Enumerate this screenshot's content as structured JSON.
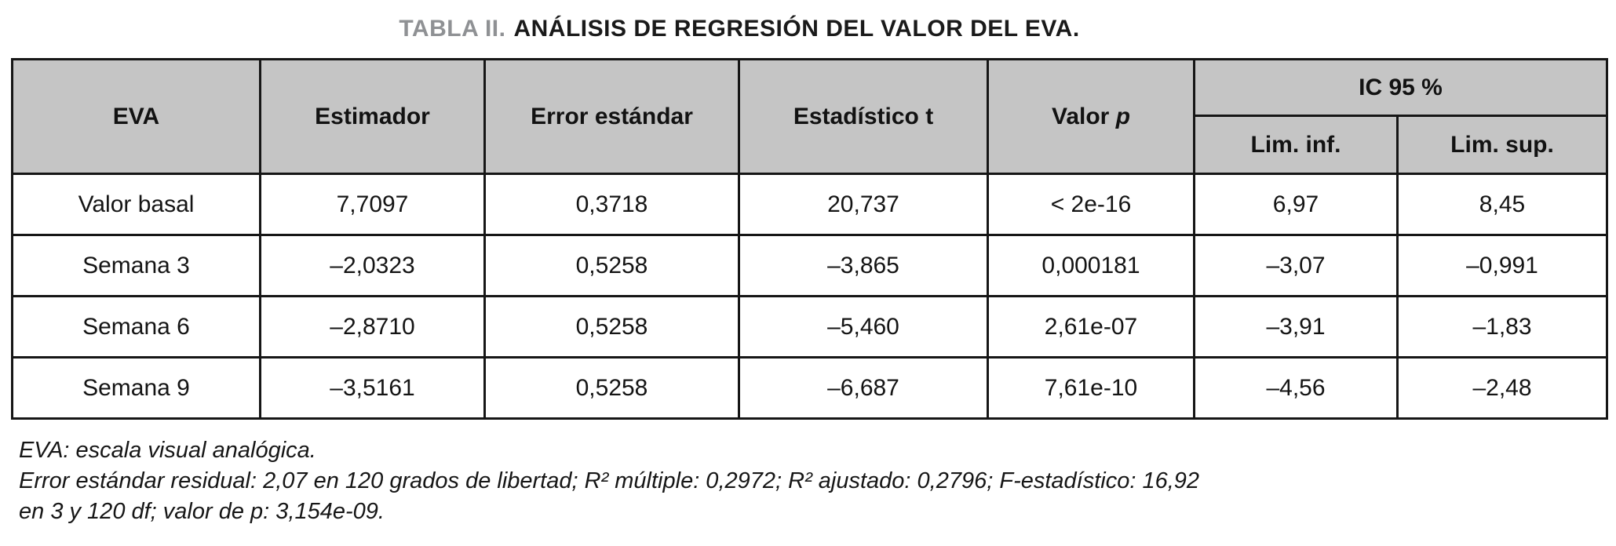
{
  "title": {
    "prefix": "TABLA II.",
    "text": "ANÁLISIS DE REGRESIÓN DEL VALOR DEL EVA."
  },
  "table": {
    "headers": {
      "eva": "EVA",
      "estimador": "Estimador",
      "error_estandar": "Error estándar",
      "estadistico_t": "Estadístico t",
      "valor_p_plain": "Valor",
      "valor_p_italic": "p",
      "ic95": "IC 95 %",
      "lim_inf": "Lim. inf.",
      "lim_sup": "Lim. sup."
    },
    "rows": [
      [
        "Valor basal",
        "7,7097",
        "0,3718",
        "20,737",
        "< 2e-16",
        "6,97",
        "8,45"
      ],
      [
        "Semana 3",
        "–2,0323",
        "0,5258",
        "–3,865",
        "0,000181",
        "–3,07",
        "–0,991"
      ],
      [
        "Semana 6",
        "–2,8710",
        "0,5258",
        "–5,460",
        "2,61e-07",
        "–3,91",
        "–1,83"
      ],
      [
        "Semana 9",
        "–3,5161",
        "0,5258",
        "–6,687",
        "7,61e-10",
        "–4,56",
        "–2,48"
      ]
    ]
  },
  "notes": [
    "EVA: escala visual analógica.",
    "Error estándar residual: 2,07 en 120 grados de libertad; R² múltiple: 0,2972; R² ajustado: 0,2796; F-estadístico: 16,92",
    "en 3 y 120 df; valor de p: 3,154e-09."
  ],
  "colors": {
    "header_background": "#c5c5c5",
    "border": "#161616",
    "title_prefix_gray": "#8f9194"
  }
}
